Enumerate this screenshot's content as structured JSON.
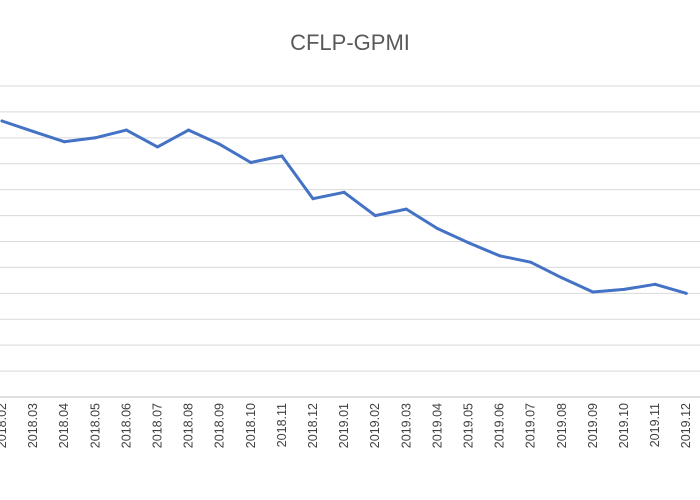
{
  "chart_data": {
    "type": "line",
    "title": "CFLP-GPMI",
    "xlabel": "",
    "ylabel": "",
    "categories": [
      "2018.02",
      "2018.03",
      "2018.04",
      "2018.05",
      "2018.06",
      "2018.07",
      "2018.08",
      "2018.09",
      "2018.10",
      "2018.11",
      "2018.12",
      "2019.01",
      "2019.02",
      "2019.03",
      "2019.04",
      "2019.05",
      "2019.06",
      "2019.07",
      "2019.08",
      "2019.09",
      "2019.10",
      "2019.11",
      "2019.12"
    ],
    "series": [
      {
        "color": "#4472c4",
        "values": [
          7.3,
          6.5,
          5.7,
          6.0,
          6.6,
          5.3,
          6.6,
          5.5,
          4.1,
          4.6,
          1.3,
          1.8,
          0.0,
          0.5,
          -1.0,
          -2.1,
          -3.1,
          -3.6,
          -4.8,
          -5.9,
          -5.7,
          -5.3,
          -6.0
        ]
      }
    ],
    "ylim": [
      -14,
      10
    ],
    "ygrid_step": 2,
    "grid": true,
    "legend": "none"
  }
}
